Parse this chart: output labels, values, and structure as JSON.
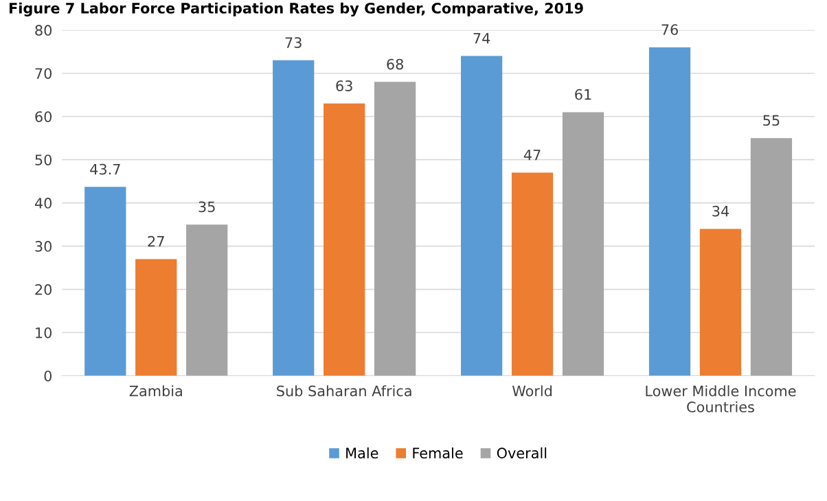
{
  "chart_data": {
    "type": "bar",
    "title": "Figure 7 Labor Force Participation Rates by Gender, Comparative, 2019",
    "categories": [
      "Zambia",
      "Sub Saharan Africa",
      "World",
      "Lower Middle Income\nCountries"
    ],
    "series": [
      {
        "name": "Male",
        "color": "#5b9bd5",
        "values": [
          43.7,
          73,
          74,
          76
        ]
      },
      {
        "name": "Female",
        "color": "#ed7d31",
        "values": [
          27,
          63,
          47,
          34
        ]
      },
      {
        "name": "Overall",
        "color": "#a5a5a5",
        "values": [
          35,
          68,
          61,
          55
        ]
      }
    ],
    "ylim": [
      0,
      80
    ],
    "yticks": [
      0,
      10,
      20,
      30,
      40,
      50,
      60,
      70,
      80
    ],
    "grid": "y",
    "legend": "bottom",
    "data_labels": true
  }
}
